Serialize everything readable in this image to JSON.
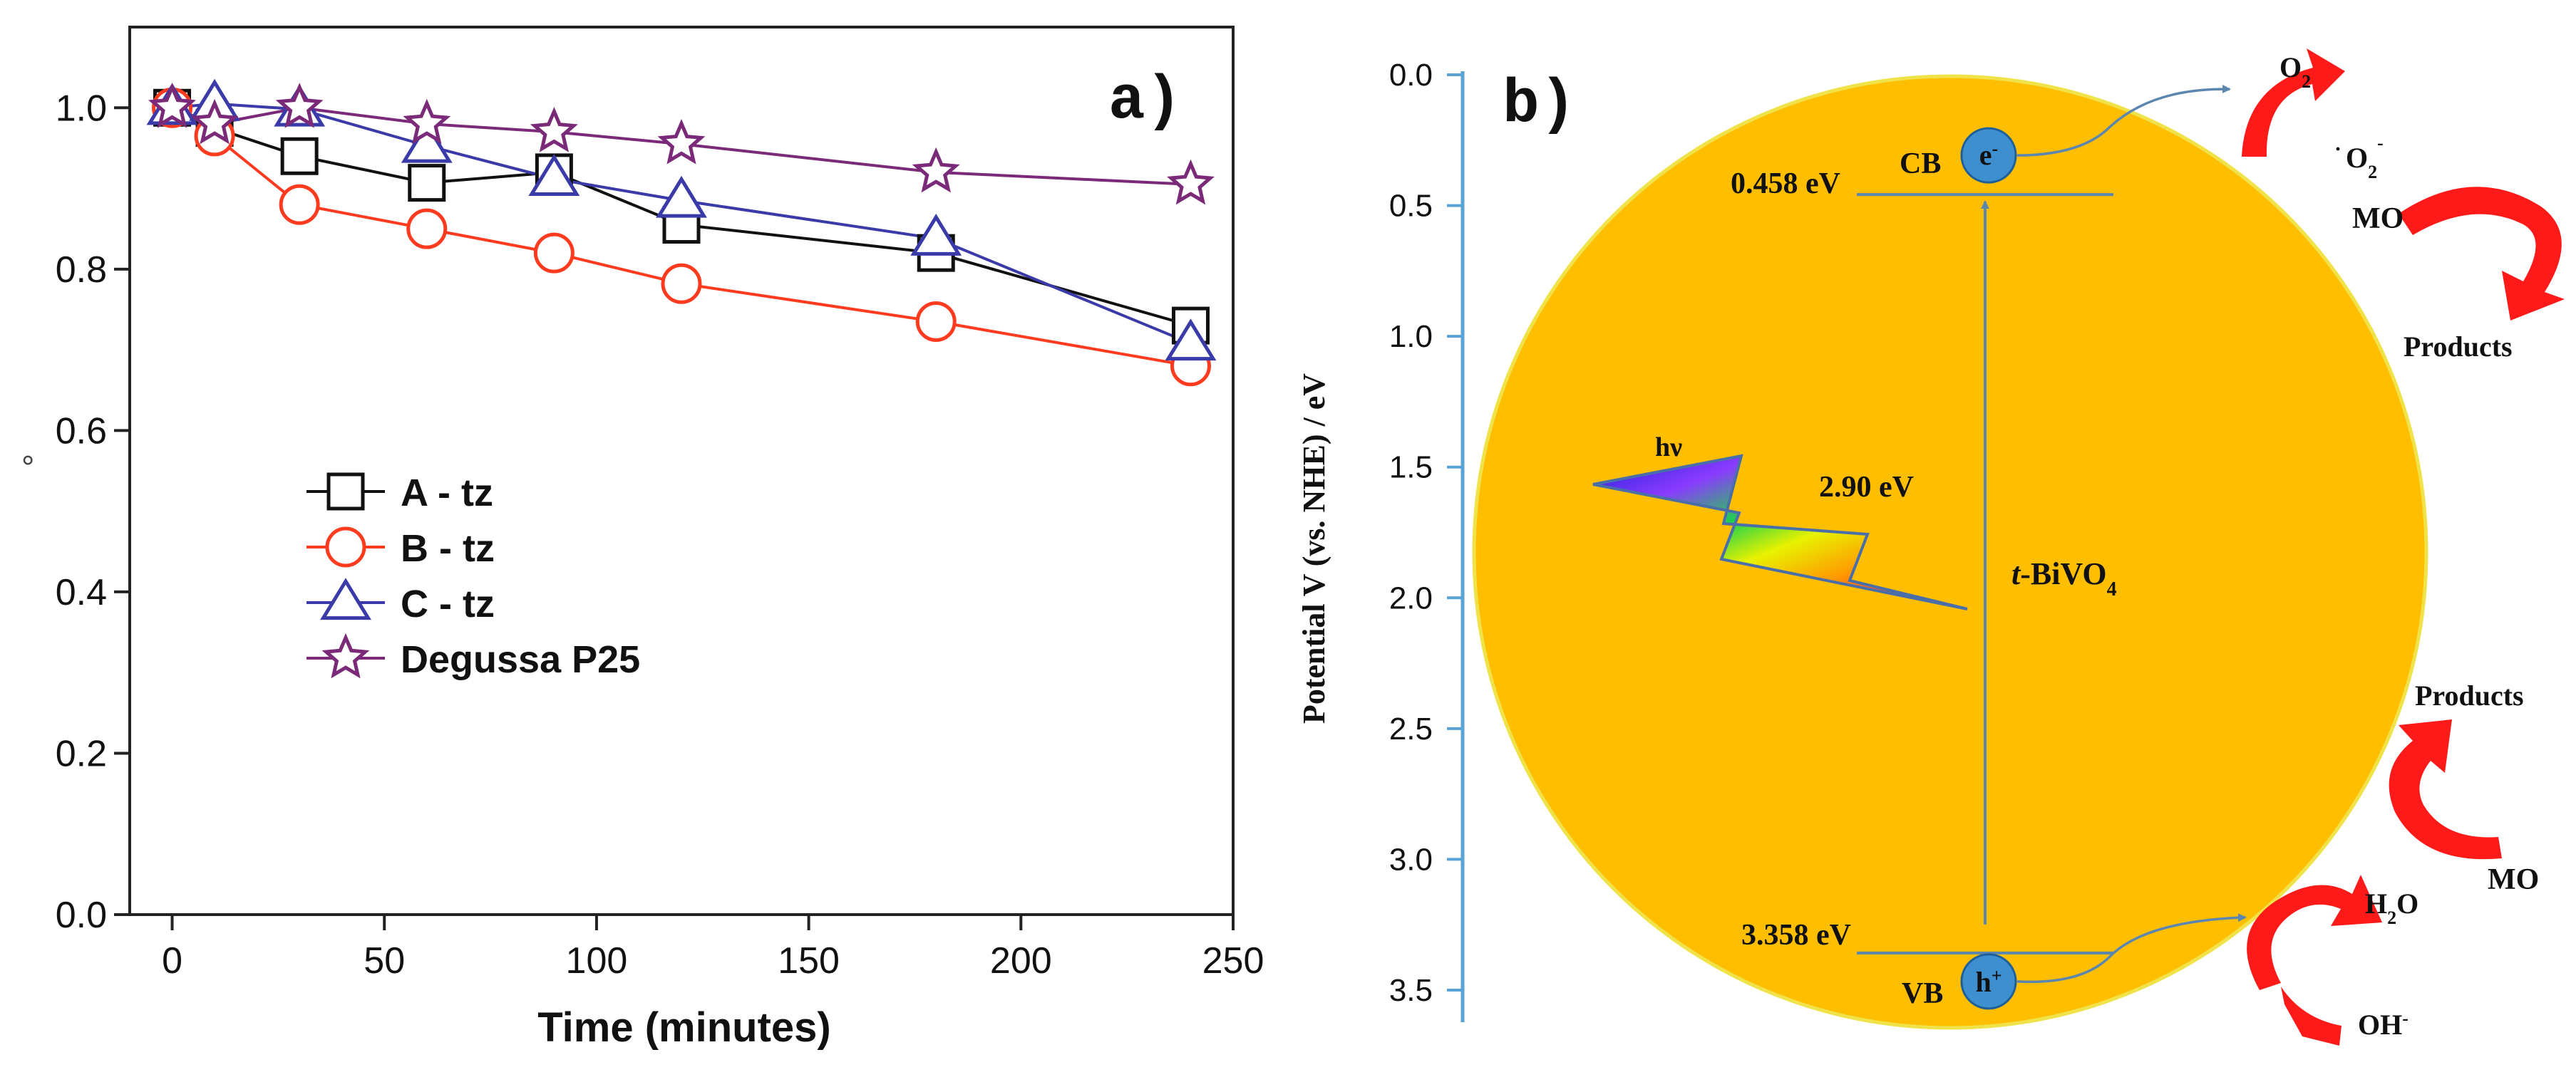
{
  "chart_data": [
    {
      "panel": "a)",
      "type": "line",
      "title": "",
      "xlabel": "Time (minutes)",
      "ylabel": "",
      "xlim": [
        -10,
        250
      ],
      "ylim": [
        0.0,
        1.1
      ],
      "xticks": [
        0,
        50,
        100,
        150,
        200,
        250
      ],
      "yticks": [
        0.0,
        0.2,
        0.4,
        0.6,
        0.8,
        1.0
      ],
      "xtick_labels": [
        "0",
        "50",
        "100",
        "150",
        "200",
        "250"
      ],
      "ytick_labels": [
        "0.0",
        "0.2",
        "0.4",
        "0.6",
        "0.8",
        "1.0"
      ],
      "ylabel_fragment": "°",
      "legend_position": "center-left",
      "series": [
        {
          "name": "A - tz",
          "marker": "square",
          "color": "#111111",
          "x": [
            0,
            10,
            30,
            60,
            90,
            120,
            180,
            240
          ],
          "values": [
            1.0,
            0.975,
            0.94,
            0.907,
            0.92,
            0.855,
            0.82,
            0.73
          ]
        },
        {
          "name": "B - tz",
          "marker": "circle",
          "color": "#ff3b1f",
          "x": [
            0,
            10,
            30,
            60,
            90,
            120,
            180,
            240
          ],
          "values": [
            1.0,
            0.965,
            0.88,
            0.85,
            0.82,
            0.782,
            0.735,
            0.68
          ]
        },
        {
          "name": "C - tz",
          "marker": "triangle",
          "color": "#3a3aa8",
          "x": [
            0,
            10,
            30,
            60,
            90,
            120,
            180,
            240
          ],
          "values": [
            1.0,
            1.005,
            0.998,
            0.953,
            0.912,
            0.885,
            0.838,
            0.708
          ]
        },
        {
          "name": "Degussa P25",
          "marker": "star",
          "color": "#7a2a78",
          "x": [
            0,
            10,
            30,
            60,
            90,
            120,
            180,
            240
          ],
          "values": [
            1.0,
            0.98,
            1.0,
            0.98,
            0.97,
            0.955,
            0.92,
            0.905
          ]
        }
      ]
    },
    {
      "panel": "b)",
      "type": "diagram",
      "ylabel": "Potential V (vs. NHE) / eV",
      "ylim": [
        -0.1,
        3.65
      ],
      "yticks": [
        0.0,
        0.5,
        1.0,
        1.5,
        2.0,
        2.5,
        3.0,
        3.5
      ],
      "ytick_labels": [
        "0.0",
        "0.5",
        "1.0",
        "1.5",
        "2.0",
        "2.5",
        "3.0",
        "3.5"
      ],
      "cb_potential": 0.458,
      "vb_potential": 3.358,
      "band_gap": 2.9,
      "labels": {
        "cb_value": "0.458 eV",
        "vb_value": "3.358 eV",
        "cb": "CB",
        "vb": "VB",
        "electron": "e",
        "electron_sup": "-",
        "hole": "h",
        "hole_sup": "+",
        "band_gap": "2.90 eV",
        "hv": "hν",
        "material_prefix": "t",
        "material_main": "-BiVO",
        "material_sub": "4",
        "o2_main": "O",
        "o2_sub": "2",
        "superoxide_dot": "·",
        "superoxide_main": "O",
        "superoxide_sub": "2",
        "superoxide_sup": "-",
        "mo_top": "MO",
        "products_top": "Products",
        "products_bottom": "Products",
        "mo_bottom": "MO",
        "h2o_h": "H",
        "h2o_sub": "2",
        "h2o_o": "O",
        "oh_main": "OH",
        "oh_sup": "-"
      },
      "colors": {
        "particle": "#ffbe00",
        "particle_edge": "#f2e64a",
        "axis": "#5aa3d6",
        "arrow": "#5a86b0",
        "reaction_arrow": "#ff1a1a",
        "carrier": "#3d8fd0"
      }
    }
  ]
}
